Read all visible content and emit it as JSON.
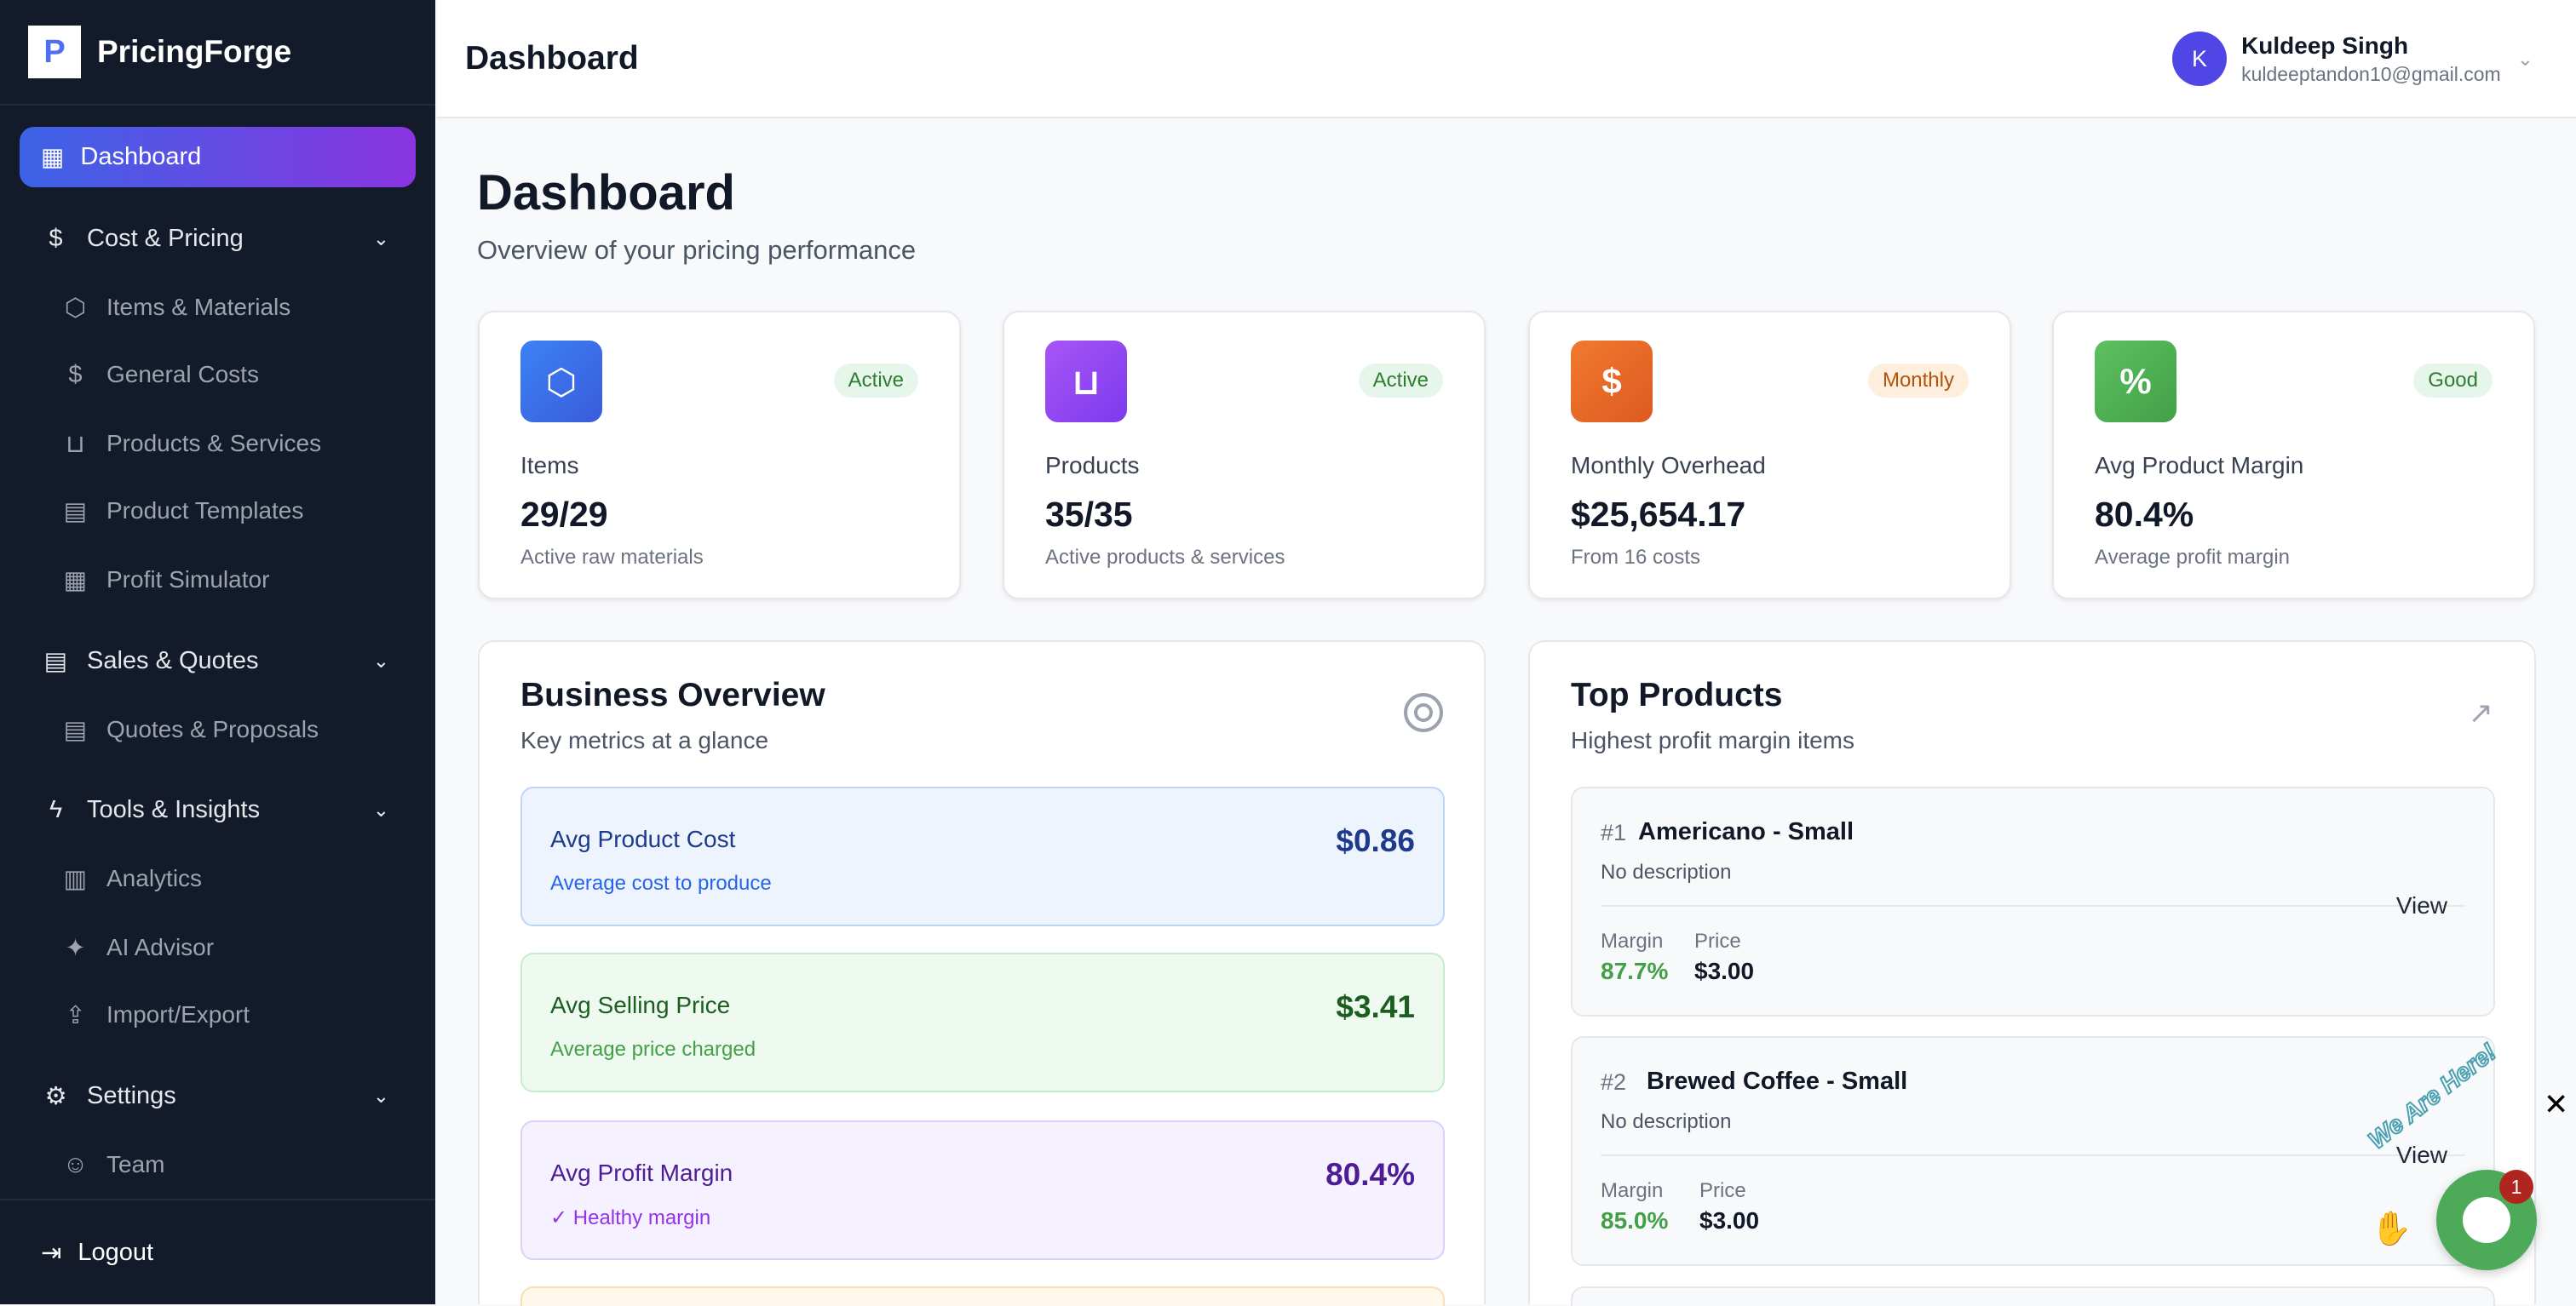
{
  "app": {
    "name": "PricingForge",
    "logo_letter": "P"
  },
  "sidebar": {
    "active": {
      "label": "Dashboard",
      "icon": "layout-grid-icon"
    },
    "groups": [
      {
        "label": "Cost & Pricing",
        "icon": "dollar-icon",
        "items": [
          {
            "label": "Items & Materials",
            "icon": "box-icon"
          },
          {
            "label": "General Costs",
            "icon": "dollar-icon"
          },
          {
            "label": "Products & Services",
            "icon": "shopping-bag-icon"
          },
          {
            "label": "Product Templates",
            "icon": "file-icon"
          },
          {
            "label": "Profit Simulator",
            "icon": "calculator-icon"
          }
        ]
      },
      {
        "label": "Sales & Quotes",
        "icon": "file-text-icon",
        "items": [
          {
            "label": "Quotes & Proposals",
            "icon": "file-icon"
          }
        ]
      },
      {
        "label": "Tools & Insights",
        "icon": "zap-icon",
        "items": [
          {
            "label": "Analytics",
            "icon": "bar-chart-icon"
          },
          {
            "label": "AI Advisor",
            "icon": "sparkles-icon"
          },
          {
            "label": "Import/Export",
            "icon": "upload-icon"
          }
        ]
      },
      {
        "label": "Settings",
        "icon": "gear-icon",
        "items": [
          {
            "label": "Team",
            "icon": "users-icon"
          }
        ]
      }
    ],
    "logout": "Logout"
  },
  "header": {
    "title": "Dashboard",
    "user": {
      "initial": "K",
      "name": "Kuldeep Singh",
      "email": "kuldeeptandon10@gmail.com"
    }
  },
  "page": {
    "title": "Dashboard",
    "subtitle": "Overview of your pricing performance"
  },
  "stats": [
    {
      "label": "Items",
      "value": "29/29",
      "desc": "Active raw materials",
      "badge": "Active",
      "icon": "box-icon",
      "color": "#3b6ff0"
    },
    {
      "label": "Products",
      "value": "35/35",
      "desc": "Active products & services",
      "badge": "Active",
      "icon": "shopping-bag-icon",
      "color": "#9b3fe6"
    },
    {
      "label": "Monthly Overhead",
      "value": "$25,654.17",
      "desc": "From 16 costs",
      "badge": "Monthly",
      "icon": "dollar-icon",
      "color": "#e8672a"
    },
    {
      "label": "Avg Product Margin",
      "value": "80.4%",
      "desc": "Average profit margin",
      "badge": "Good",
      "icon": "percent-icon",
      "color": "#4caf50"
    }
  ],
  "overview": {
    "title": "Business Overview",
    "subtitle": "Key metrics at a glance",
    "metrics": [
      {
        "label": "Avg Product Cost",
        "value": "$0.86",
        "desc": "Average cost to produce"
      },
      {
        "label": "Avg Selling Price",
        "value": "$3.41",
        "desc": "Average price charged"
      },
      {
        "label": "Avg Profit Margin",
        "value": "80.4%",
        "desc": "✓ Healthy margin"
      }
    ]
  },
  "top_products": {
    "title": "Top Products",
    "subtitle": "Highest profit margin items",
    "margin_label": "Margin",
    "price_label": "Price",
    "view_label": "View",
    "items": [
      {
        "rank": "#1",
        "name": "Americano - Small",
        "desc": "No description",
        "margin": "87.7%",
        "price": "$3.00"
      },
      {
        "rank": "#2",
        "name": "Brewed Coffee - Small",
        "desc": "No description",
        "margin": "85.0%",
        "price": "$3.00"
      }
    ]
  },
  "chat": {
    "tagline": "We Are Here!",
    "unread": "1"
  }
}
